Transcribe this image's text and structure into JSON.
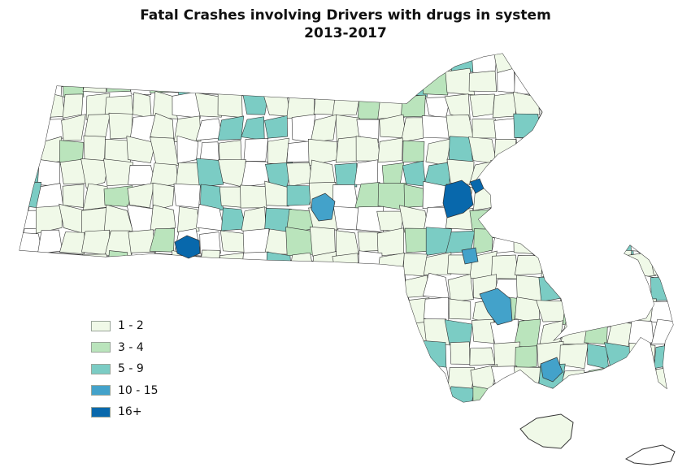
{
  "title": {
    "line1": "Fatal Crashes involving Drivers with drugs in system",
    "line2": "2013-2017"
  },
  "legend": [
    {
      "label": "1 - 2",
      "color": "#f0f9e8"
    },
    {
      "label": "3 - 4",
      "color": "#bae4bc"
    },
    {
      "label": "5 - 9",
      "color": "#7bccc4"
    },
    {
      "label": "10 - 15",
      "color": "#43a2ca"
    },
    {
      "label": "16+",
      "color": "#0868ac"
    }
  ],
  "map_style": {
    "no_data_color": "#ffffff",
    "border_color": "#333333"
  }
}
